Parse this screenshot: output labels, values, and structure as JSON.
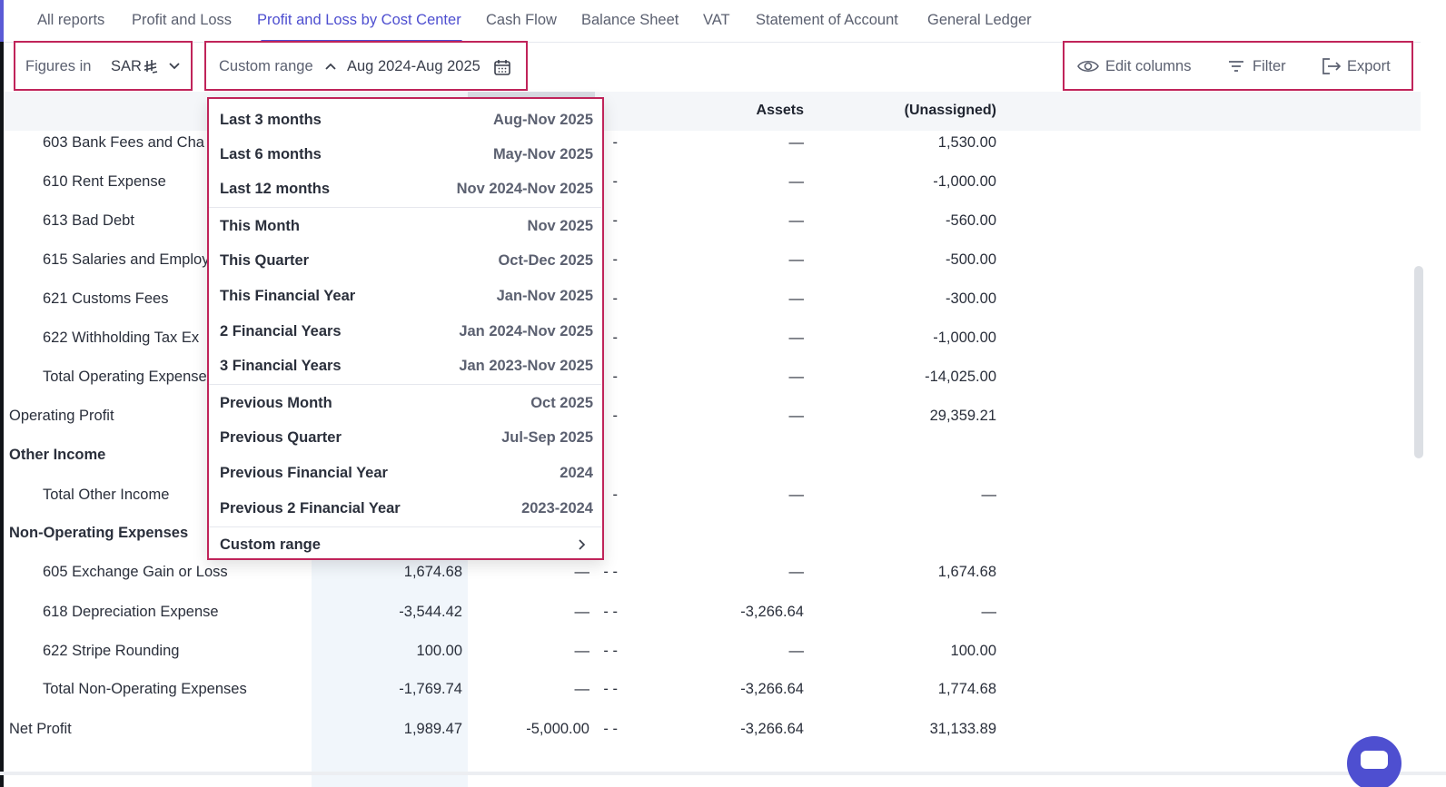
{
  "tabs": [
    {
      "label": "All reports"
    },
    {
      "label": "Profit and Loss"
    },
    {
      "label": "Profit and Loss by Cost Center"
    },
    {
      "label": "Cash Flow"
    },
    {
      "label": "Balance Sheet"
    },
    {
      "label": "VAT"
    },
    {
      "label": "Statement of Account"
    },
    {
      "label": "General Ledger"
    }
  ],
  "toolbar": {
    "figures_label": "Figures in",
    "currency": "SAR",
    "range_label": "Custom range",
    "range_value": "Aug 2024-Aug 2025",
    "edit_columns": "Edit columns",
    "filter": "Filter",
    "export": "Export"
  },
  "table": {
    "headers": [
      "Assets",
      "(Unassigned)"
    ],
    "rows": [
      {
        "label": "603 Bank Fees and Cha",
        "c3": "-",
        "c4": "—",
        "c5": "1,530.00"
      },
      {
        "label": "610 Rent Expense",
        "c3": "-",
        "c4": "—",
        "c5": "-1,000.00"
      },
      {
        "label": "613 Bad Debt",
        "c3": "-",
        "c4": "—",
        "c5": "-560.00"
      },
      {
        "label": "615 Salaries and Employ",
        "c3": "-",
        "c4": "—",
        "c5": "-500.00"
      },
      {
        "label": "621 Customs Fees",
        "c3": "-",
        "c4": "—",
        "c5": "-300.00"
      },
      {
        "label": "622 Withholding Tax Ex",
        "c3": "-",
        "c4": "—",
        "c5": "-1,000.00"
      },
      {
        "label": "Total Operating Expense",
        "c3": "-",
        "c4": "—",
        "c5": "-14,025.00"
      },
      {
        "label": "Operating Profit",
        "c3": "-",
        "c4": "—",
        "c5": "29,359.21"
      },
      {
        "label": "Other Income"
      },
      {
        "label": "Total Other Income",
        "c3": "-",
        "c4": "—",
        "c5": "—"
      },
      {
        "label": "Non-Operating Expenses"
      },
      {
        "label": "605 Exchange Gain or Loss",
        "c1": "1,674.68",
        "c2": "—",
        "c3": "- -",
        "c4": "—",
        "c5": "1,674.68"
      },
      {
        "label": "618 Depreciation Expense",
        "c1": "-3,544.42",
        "c2": "—",
        "c3": "- -",
        "c4": "-3,266.64",
        "c5": "—"
      },
      {
        "label": "622 Stripe Rounding",
        "c1": "100.00",
        "c2": "—",
        "c3": "- -",
        "c4": "—",
        "c5": "100.00"
      },
      {
        "label": "Total Non-Operating Expenses",
        "c1": "-1,769.74",
        "c2": "—",
        "c3": "- -",
        "c4": "-3,266.64",
        "c5": "1,774.68"
      },
      {
        "label": "Net Profit",
        "c1": "1,989.47",
        "c2": "-5,000.00",
        "c3": "- -",
        "c4": "-3,266.64",
        "c5": "31,133.89"
      }
    ]
  },
  "dropdown": {
    "items": [
      {
        "label": "Last 3 months",
        "range": "Aug-Nov 2025"
      },
      {
        "label": "Last 6 months",
        "range": "May-Nov 2025"
      },
      {
        "label": "Last 12 months",
        "range": "Nov 2024-Nov 2025"
      },
      {
        "label": "This Month",
        "range": "Nov 2025"
      },
      {
        "label": "This Quarter",
        "range": "Oct-Dec 2025"
      },
      {
        "label": "This Financial Year",
        "range": "Jan-Nov 2025"
      },
      {
        "label": "2 Financial Years",
        "range": "Jan 2024-Nov 2025"
      },
      {
        "label": "3 Financial Years",
        "range": "Jan 2023-Nov 2025"
      },
      {
        "label": "Previous Month",
        "range": "Oct 2025"
      },
      {
        "label": "Previous Quarter",
        "range": "Jul-Sep 2025"
      },
      {
        "label": "Previous Financial Year",
        "range": "2024"
      },
      {
        "label": "Previous 2 Financial Year",
        "range": "2023-2024"
      },
      {
        "label": "Custom range"
      }
    ]
  },
  "colors": {
    "accent": "#4e4fd0",
    "highlight": "#c0245a"
  }
}
